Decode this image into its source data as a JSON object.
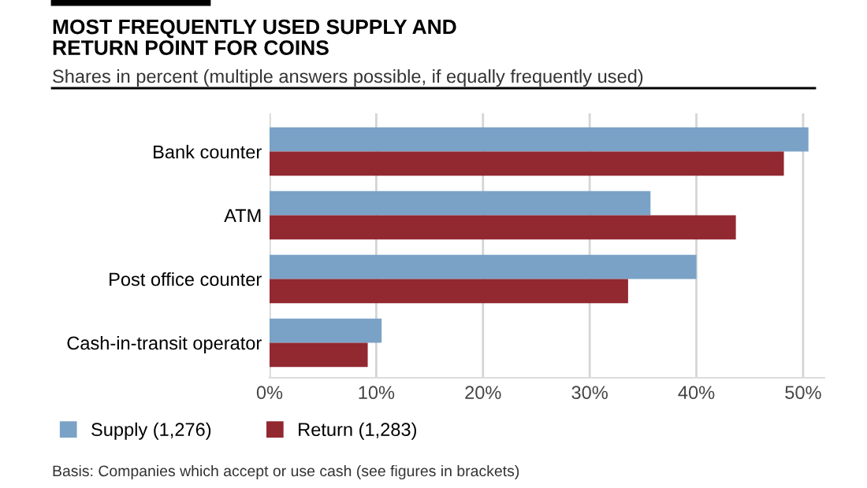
{
  "chart_data": {
    "type": "bar",
    "orientation": "horizontal",
    "title": "MOST FREQUENTLY USED SUPPLY AND\nRETURN POINT FOR COINS",
    "subtitle": "Shares in percent (multiple answers possible, if equally frequently used)",
    "categories": [
      "Bank counter",
      "ATM",
      "Post office counter",
      "Cash-in-transit operator"
    ],
    "series": [
      {
        "name": "Supply (1,276)",
        "color": "#7aa2c6",
        "values": [
          50.5,
          35.7,
          40.0,
          10.5
        ]
      },
      {
        "name": "Return (1,283)",
        "color": "#922830",
        "values": [
          48.2,
          43.7,
          33.6,
          9.2
        ]
      }
    ],
    "xlim": [
      0,
      52
    ],
    "xticks": [
      {
        "value": 0,
        "label": "0%"
      },
      {
        "value": 10,
        "label": "10%"
      },
      {
        "value": 20,
        "label": "20%"
      },
      {
        "value": 30,
        "label": "30%"
      },
      {
        "value": 40,
        "label": "40%"
      },
      {
        "value": 50,
        "label": "50%"
      }
    ],
    "grid": "x",
    "legend": "bottom left",
    "annotations": [
      "Basis: Companies which accept or use cash (see figures in brackets)"
    ]
  }
}
